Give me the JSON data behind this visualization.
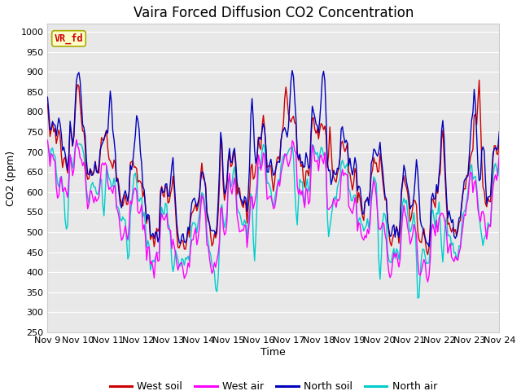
{
  "title": "Vaira Forced Diffusion CO2 Concentration",
  "xlabel": "Time",
  "ylabel": "CO2 (ppm)",
  "ylim": [
    250,
    1020
  ],
  "yticks": [
    250,
    300,
    350,
    400,
    450,
    500,
    550,
    600,
    650,
    700,
    750,
    800,
    850,
    900,
    950,
    1000
  ],
  "xlim": [
    0,
    360
  ],
  "xtick_positions": [
    0,
    24,
    48,
    72,
    96,
    120,
    144,
    168,
    192,
    216,
    240,
    264,
    288,
    312,
    336,
    360
  ],
  "xtick_labels": [
    "Nov 9",
    "Nov 10",
    "Nov 11",
    "Nov 12",
    "Nov 13",
    "Nov 14",
    "Nov 15",
    "Nov 16",
    "Nov 17",
    "Nov 18",
    "Nov 19",
    "Nov 20",
    "Nov 21",
    "Nov 22",
    "Nov 23",
    "Nov 24"
  ],
  "legend_labels": [
    "West soil",
    "West air",
    "North soil",
    "North air"
  ],
  "colors": [
    "#cc0000",
    "#ff00ff",
    "#0000bb",
    "#00cccc"
  ],
  "vr_fd_label": "VR_fd",
  "vr_fd_color": "#cc0000",
  "vr_fd_bg": "#ffffcc",
  "vr_fd_border": "#aaaa00",
  "fig_bg": "#ffffff",
  "plot_bg": "#e8e8e8",
  "grid_color": "#ffffff",
  "title_fontsize": 12,
  "axis_label_fontsize": 9,
  "tick_fontsize": 8
}
